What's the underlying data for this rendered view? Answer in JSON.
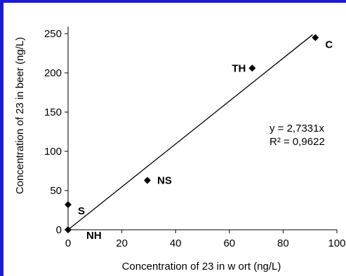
{
  "chart_data": {
    "type": "scatter",
    "title": "",
    "xlabel": "Concentration of 23 in w ort (ng/L)",
    "ylabel": "Concentration of 23 in beer (ng/L)",
    "xlim": [
      0,
      100
    ],
    "ylim": [
      0,
      250
    ],
    "xticks": [
      0,
      20,
      40,
      60,
      80,
      100
    ],
    "yticks": [
      0,
      50,
      100,
      150,
      200,
      250
    ],
    "grid": false,
    "legend": "none",
    "points": [
      {
        "label": "NH",
        "x": 0,
        "y": 0
      },
      {
        "label": "S",
        "x": 0,
        "y": 32
      },
      {
        "label": "NS",
        "x": 29.5,
        "y": 63
      },
      {
        "label": "TH",
        "x": 68.5,
        "y": 206
      },
      {
        "label": "C",
        "x": 92,
        "y": 245
      }
    ],
    "trendline": {
      "slope": 2.7331,
      "x_end": 91,
      "equation": "y = 2,7331x",
      "r_squared": "R² = 0,9622"
    },
    "frame_color": "#1a1adf",
    "marker_color": "#000000"
  }
}
